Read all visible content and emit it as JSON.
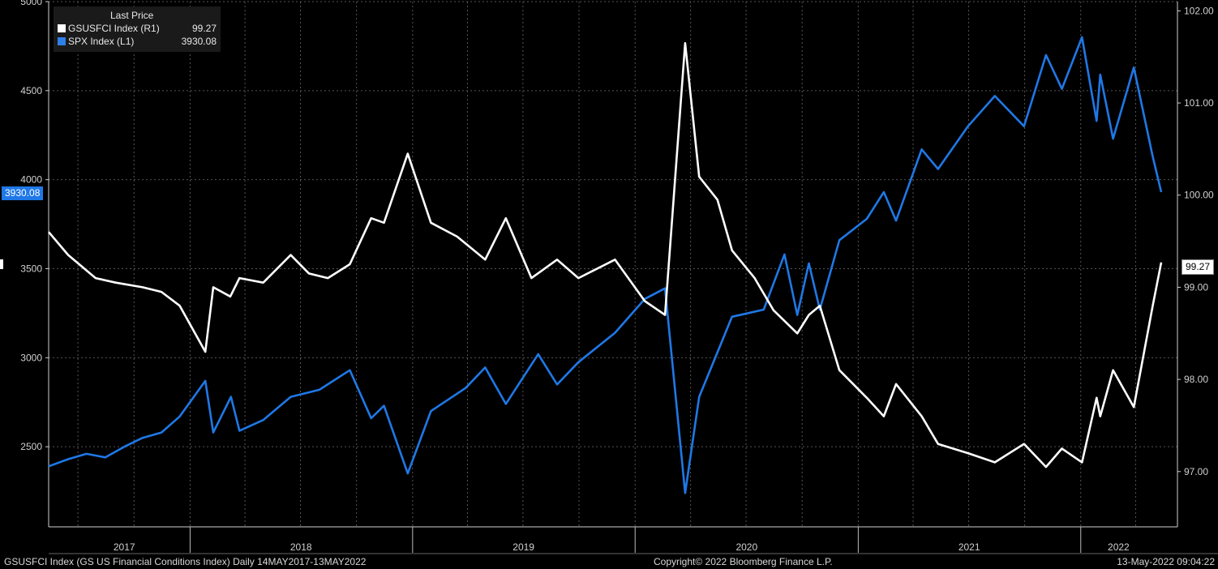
{
  "footer": {
    "left": "GSUSFCI Index (GS US Financial Conditions Index)  Daily 14MAY2017-13MAY2022",
    "center": "Copyright© 2022 Bloomberg Finance L.P.",
    "right": "13-May-2022 09:04:22"
  },
  "legend": {
    "header": "Last Price",
    "items": [
      {
        "name": "GSUSFCI Index  (R1)",
        "value": "99.27",
        "color": "#ffffff"
      },
      {
        "name": "SPX Index  (L1)",
        "value": "3930.08",
        "color": "#2f7fe8"
      }
    ]
  },
  "tags": {
    "spx_last": "3930.08",
    "gs_last": "99.27"
  },
  "colors": {
    "background": "#000000",
    "grid": "#555555",
    "spx": "#1f78e6",
    "gsusfci": "#ffffff"
  },
  "chart_data": {
    "type": "line",
    "x_range": [
      "2017-05-14",
      "2022-05-13"
    ],
    "x_ticks": [
      {
        "label": "2017",
        "date": "2017-09-15"
      },
      {
        "label": "2018",
        "date": "2018-07-02"
      },
      {
        "label": "2019",
        "date": "2019-07-02"
      },
      {
        "label": "2020",
        "date": "2020-07-02"
      },
      {
        "label": "2021",
        "date": "2021-07-02"
      },
      {
        "label": "2022",
        "date": "2022-03-04"
      }
    ],
    "year_dividers": [
      "2018-01-01",
      "2019-01-01",
      "2020-01-01",
      "2021-01-01",
      "2022-01-01"
    ],
    "left_axis": {
      "ylim": [
        2050,
        5000
      ],
      "ticks": [
        2500,
        3000,
        3500,
        4000,
        4500,
        5000
      ]
    },
    "right_axis": {
      "ylim": [
        96.4,
        102.1
      ],
      "ticks": [
        "97.00",
        "98.00",
        "99.00",
        "100.00",
        "101.00",
        "102.00"
      ]
    },
    "grid": true,
    "legend_position": "top-left",
    "series": [
      {
        "name": "SPX Index  (L1)",
        "axis": "left",
        "points": [
          [
            "2017-05-14",
            2390
          ],
          [
            "2017-06-15",
            2430
          ],
          [
            "2017-07-15",
            2460
          ],
          [
            "2017-08-15",
            2440
          ],
          [
            "2017-09-15",
            2500
          ],
          [
            "2017-10-15",
            2550
          ],
          [
            "2017-11-15",
            2580
          ],
          [
            "2017-12-15",
            2670
          ],
          [
            "2018-01-26",
            2870
          ],
          [
            "2018-02-08",
            2580
          ],
          [
            "2018-03-09",
            2780
          ],
          [
            "2018-03-23",
            2590
          ],
          [
            "2018-05-01",
            2650
          ],
          [
            "2018-06-15",
            2780
          ],
          [
            "2018-08-01",
            2820
          ],
          [
            "2018-09-20",
            2930
          ],
          [
            "2018-10-25",
            2660
          ],
          [
            "2018-11-15",
            2730
          ],
          [
            "2018-12-24",
            2350
          ],
          [
            "2019-01-31",
            2700
          ],
          [
            "2019-03-29",
            2830
          ],
          [
            "2019-04-30",
            2945
          ],
          [
            "2019-06-03",
            2740
          ],
          [
            "2019-07-26",
            3020
          ],
          [
            "2019-08-26",
            2850
          ],
          [
            "2019-09-30",
            2975
          ],
          [
            "2019-11-29",
            3140
          ],
          [
            "2020-01-17",
            3330
          ],
          [
            "2020-02-19",
            3390
          ],
          [
            "2020-03-23",
            2240
          ],
          [
            "2020-04-15",
            2780
          ],
          [
            "2020-06-08",
            3230
          ],
          [
            "2020-07-30",
            3270
          ],
          [
            "2020-09-02",
            3580
          ],
          [
            "2020-09-23",
            3240
          ],
          [
            "2020-10-12",
            3530
          ],
          [
            "2020-10-30",
            3270
          ],
          [
            "2020-12-01",
            3660
          ],
          [
            "2021-01-15",
            3780
          ],
          [
            "2021-02-12",
            3930
          ],
          [
            "2021-03-04",
            3770
          ],
          [
            "2021-04-15",
            4170
          ],
          [
            "2021-05-12",
            4060
          ],
          [
            "2021-06-30",
            4300
          ],
          [
            "2021-08-13",
            4470
          ],
          [
            "2021-09-30",
            4300
          ],
          [
            "2021-11-05",
            4700
          ],
          [
            "2021-12-01",
            4510
          ],
          [
            "2022-01-03",
            4800
          ],
          [
            "2022-01-27",
            4330
          ],
          [
            "2022-02-02",
            4590
          ],
          [
            "2022-02-23",
            4230
          ],
          [
            "2022-03-29",
            4630
          ],
          [
            "2022-04-29",
            4130
          ],
          [
            "2022-05-13",
            3930.08
          ]
        ]
      },
      {
        "name": "GSUSFCI Index  (R1)",
        "axis": "right",
        "points": [
          [
            "2017-05-14",
            99.6
          ],
          [
            "2017-06-15",
            99.35
          ],
          [
            "2017-07-30",
            99.1
          ],
          [
            "2017-09-01",
            99.05
          ],
          [
            "2017-10-15",
            99.0
          ],
          [
            "2017-11-15",
            98.95
          ],
          [
            "2017-12-15",
            98.8
          ],
          [
            "2018-01-26",
            98.3
          ],
          [
            "2018-02-08",
            99.0
          ],
          [
            "2018-03-08",
            98.9
          ],
          [
            "2018-03-23",
            99.1
          ],
          [
            "2018-05-01",
            99.05
          ],
          [
            "2018-06-15",
            99.35
          ],
          [
            "2018-07-15",
            99.15
          ],
          [
            "2018-08-15",
            99.1
          ],
          [
            "2018-09-20",
            99.25
          ],
          [
            "2018-10-25",
            99.75
          ],
          [
            "2018-11-15",
            99.7
          ],
          [
            "2018-12-24",
            100.45
          ],
          [
            "2019-01-31",
            99.7
          ],
          [
            "2019-03-15",
            99.55
          ],
          [
            "2019-04-30",
            99.3
          ],
          [
            "2019-06-03",
            99.75
          ],
          [
            "2019-07-15",
            99.1
          ],
          [
            "2019-08-26",
            99.3
          ],
          [
            "2019-09-30",
            99.1
          ],
          [
            "2019-11-29",
            99.3
          ],
          [
            "2020-01-17",
            98.85
          ],
          [
            "2020-02-19",
            98.7
          ],
          [
            "2020-03-23",
            101.65
          ],
          [
            "2020-04-15",
            100.2
          ],
          [
            "2020-05-15",
            99.95
          ],
          [
            "2020-06-08",
            99.4
          ],
          [
            "2020-07-15",
            99.1
          ],
          [
            "2020-08-15",
            98.75
          ],
          [
            "2020-09-23",
            98.5
          ],
          [
            "2020-10-12",
            98.7
          ],
          [
            "2020-10-30",
            98.8
          ],
          [
            "2020-12-01",
            98.1
          ],
          [
            "2021-01-15",
            97.8
          ],
          [
            "2021-02-12",
            97.6
          ],
          [
            "2021-03-04",
            97.95
          ],
          [
            "2021-04-15",
            97.6
          ],
          [
            "2021-05-12",
            97.3
          ],
          [
            "2021-06-30",
            97.2
          ],
          [
            "2021-08-13",
            97.1
          ],
          [
            "2021-09-30",
            97.3
          ],
          [
            "2021-11-05",
            97.05
          ],
          [
            "2021-12-01",
            97.25
          ],
          [
            "2022-01-03",
            97.1
          ],
          [
            "2022-01-27",
            97.8
          ],
          [
            "2022-02-02",
            97.6
          ],
          [
            "2022-02-23",
            98.1
          ],
          [
            "2022-03-29",
            97.7
          ],
          [
            "2022-04-29",
            98.8
          ],
          [
            "2022-05-13",
            99.27
          ]
        ]
      }
    ]
  }
}
